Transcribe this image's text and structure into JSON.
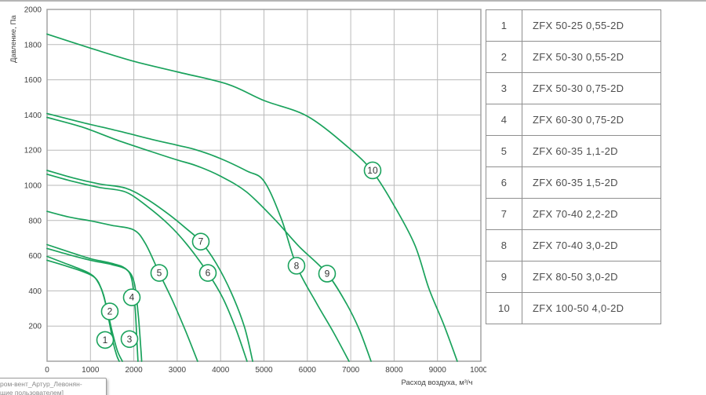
{
  "chart_data": {
    "type": "line",
    "title": "",
    "xlabel": "Расход воздуха, м³/ч",
    "ylabel": "Давление, Па",
    "xlim": [
      0,
      10000
    ],
    "ylim": [
      0,
      2000
    ],
    "grid": true,
    "legend_position": "right-table",
    "x_ticks": [
      0,
      1000,
      2000,
      3000,
      4000,
      5000,
      6000,
      7000,
      8000,
      9000,
      10000
    ],
    "y_ticks": [
      200,
      400,
      600,
      800,
      1000,
      1200,
      1400,
      1600,
      1800,
      2000
    ],
    "series": [
      {
        "label": "1",
        "name": "ZFX 50-25 0,55-2D",
        "label_at": [
          1338,
          121
        ],
        "points": [
          [
            0,
            596
          ],
          [
            400,
            558
          ],
          [
            800,
            520
          ],
          [
            1000,
            496
          ],
          [
            1150,
            460
          ],
          [
            1300,
            378
          ],
          [
            1420,
            240
          ],
          [
            1530,
            100
          ],
          [
            1610,
            30
          ],
          [
            1664,
            0
          ]
        ]
      },
      {
        "label": "2",
        "name": "ZFX 50-30 0,55-2D",
        "label_at": [
          1446,
          283
        ],
        "points": [
          [
            0,
            574
          ],
          [
            400,
            544
          ],
          [
            800,
            512
          ],
          [
            1100,
            476
          ],
          [
            1250,
            412
          ],
          [
            1380,
            300
          ],
          [
            1500,
            170
          ],
          [
            1620,
            60
          ],
          [
            1736,
            0
          ]
        ]
      },
      {
        "label": "3",
        "name": "ZFX 50-30 0,75-2D",
        "label_at": [
          1899,
          126
        ],
        "points": [
          [
            0,
            663
          ],
          [
            500,
            622
          ],
          [
            1000,
            583
          ],
          [
            1500,
            556
          ],
          [
            1800,
            528
          ],
          [
            1950,
            468
          ],
          [
            2030,
            300
          ],
          [
            2075,
            100
          ],
          [
            2095,
            0
          ]
        ]
      },
      {
        "label": "4",
        "name": "ZFX 60-30 0,75-2D",
        "label_at": [
          1953,
          363
        ],
        "points": [
          [
            0,
            641
          ],
          [
            500,
            606
          ],
          [
            1000,
            574
          ],
          [
            1500,
            549
          ],
          [
            1850,
            518
          ],
          [
            2010,
            445
          ],
          [
            2100,
            270
          ],
          [
            2160,
            80
          ],
          [
            2180,
            0
          ]
        ]
      },
      {
        "label": "5",
        "name": "ZFX 60-35 1,1-2D",
        "label_at": [
          2585,
          502
        ],
        "points": [
          [
            0,
            852
          ],
          [
            500,
            820
          ],
          [
            1000,
            798
          ],
          [
            1500,
            772
          ],
          [
            2000,
            746
          ],
          [
            2270,
            668
          ],
          [
            2585,
            502
          ],
          [
            2900,
            340
          ],
          [
            3200,
            168
          ],
          [
            3470,
            0
          ]
        ]
      },
      {
        "label": "6",
        "name": "ZFX 60-35 1,5-2D",
        "label_at": [
          3707,
          502
        ],
        "points": [
          [
            0,
            1063
          ],
          [
            600,
            1022
          ],
          [
            1200,
            988
          ],
          [
            1810,
            962
          ],
          [
            2300,
            882
          ],
          [
            2800,
            778
          ],
          [
            3230,
            662
          ],
          [
            3707,
            502
          ],
          [
            4050,
            360
          ],
          [
            4350,
            185
          ],
          [
            4610,
            0
          ]
        ]
      },
      {
        "label": "7",
        "name": "ZFX 70-40 2,2-2D",
        "label_at": [
          3544,
          680
        ],
        "points": [
          [
            0,
            1085
          ],
          [
            600,
            1042
          ],
          [
            1200,
            1008
          ],
          [
            1810,
            984
          ],
          [
            2300,
            922
          ],
          [
            2800,
            836
          ],
          [
            3200,
            756
          ],
          [
            3544,
            680
          ],
          [
            3900,
            556
          ],
          [
            4250,
            388
          ],
          [
            4550,
            195
          ],
          [
            4740,
            0
          ]
        ]
      },
      {
        "label": "8",
        "name": "ZFX 70-40 3,0-2D",
        "label_at": [
          5750,
          543
        ],
        "points": [
          [
            0,
            1408
          ],
          [
            800,
            1358
          ],
          [
            1627,
            1310
          ],
          [
            2400,
            1262
          ],
          [
            3000,
            1228
          ],
          [
            3435,
            1202
          ],
          [
            4000,
            1152
          ],
          [
            4600,
            1082
          ],
          [
            5000,
            1024
          ],
          [
            5400,
            810
          ],
          [
            5750,
            543
          ],
          [
            6200,
            335
          ],
          [
            6600,
            165
          ],
          [
            6961,
            0
          ]
        ]
      },
      {
        "label": "9",
        "name": "ZFX 80-50 3,0-2D",
        "label_at": [
          6455,
          498
        ],
        "points": [
          [
            0,
            1386
          ],
          [
            800,
            1332
          ],
          [
            1627,
            1256
          ],
          [
            2400,
            1192
          ],
          [
            3000,
            1144
          ],
          [
            3435,
            1112
          ],
          [
            4000,
            1052
          ],
          [
            4600,
            962
          ],
          [
            5244,
            807
          ],
          [
            5800,
            655
          ],
          [
            6455,
            498
          ],
          [
            6900,
            328
          ],
          [
            7200,
            178
          ],
          [
            7468,
            0
          ]
        ]
      },
      {
        "label": "10",
        "name": "ZFX 100-50 4,0-2D",
        "label_at": [
          7504,
          1085
        ],
        "points": [
          [
            0,
            1860
          ],
          [
            1000,
            1780
          ],
          [
            2000,
            1705
          ],
          [
            3000,
            1645
          ],
          [
            4160,
            1575
          ],
          [
            5000,
            1482
          ],
          [
            6020,
            1390
          ],
          [
            7030,
            1197
          ],
          [
            7520,
            1072
          ],
          [
            8000,
            885
          ],
          [
            8480,
            660
          ],
          [
            8800,
            415
          ],
          [
            9150,
            205
          ],
          [
            9455,
            0
          ]
        ]
      }
    ]
  },
  "legend_table": {
    "rows": [
      {
        "num": "1",
        "model": "ZFX 50-25 0,55-2D"
      },
      {
        "num": "2",
        "model": "ZFX 50-30 0,55-2D"
      },
      {
        "num": "3",
        "model": "ZFX 50-30 0,75-2D"
      },
      {
        "num": "4",
        "model": "ZFX 60-30 0,75-2D"
      },
      {
        "num": "5",
        "model": "ZFX 60-35 1,1-2D"
      },
      {
        "num": "6",
        "model": "ZFX 60-35 1,5-2D"
      },
      {
        "num": "7",
        "model": "ZFX 70-40 2,2-2D"
      },
      {
        "num": "8",
        "model": "ZFX 70-40 3,0-2D"
      },
      {
        "num": "9",
        "model": "ZFX 80-50 3,0-2D"
      },
      {
        "num": "10",
        "model": "ZFX 100-50 4,0-2D"
      }
    ]
  },
  "tooltip": {
    "line1": "ром-вент_Артур_Левонян-",
    "line2": "щие пользователем]"
  },
  "colors": {
    "curve_green": "#1aa25c",
    "grid_gray": "#bababa",
    "plot_border_gray": "#a3a3a3",
    "table_border_gray": "#8f8f8f",
    "text_gray": "#4d4d4d"
  }
}
